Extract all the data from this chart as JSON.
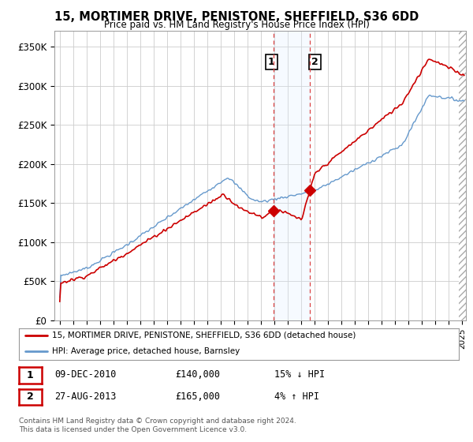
{
  "title": "15, MORTIMER DRIVE, PENISTONE, SHEFFIELD, S36 6DD",
  "subtitle": "Price paid vs. HM Land Registry's House Price Index (HPI)",
  "ylabel_ticks": [
    "£0",
    "£50K",
    "£100K",
    "£150K",
    "£200K",
    "£250K",
    "£300K",
    "£350K"
  ],
  "ytick_values": [
    0,
    50000,
    100000,
    150000,
    200000,
    250000,
    300000,
    350000
  ],
  "ylim": [
    0,
    370000
  ],
  "xlim_start": 1994.6,
  "xlim_end": 2025.3,
  "red_line_color": "#cc0000",
  "blue_line_color": "#6699cc",
  "sale1_date": 2010.94,
  "sale1_price": 140000,
  "sale2_date": 2013.65,
  "sale2_price": 165000,
  "vline_color": "#dd4444",
  "shade_color": "#ddeeff",
  "legend_line1": "15, MORTIMER DRIVE, PENISTONE, SHEFFIELD, S36 6DD (detached house)",
  "legend_line2": "HPI: Average price, detached house, Barnsley",
  "table_row1": [
    "1",
    "09-DEC-2010",
    "£140,000",
    "15% ↓ HPI"
  ],
  "table_row2": [
    "2",
    "27-AUG-2013",
    "£165,000",
    "4% ↑ HPI"
  ],
  "footnote": "Contains HM Land Registry data © Crown copyright and database right 2024.\nThis data is licensed under the Open Government Licence v3.0.",
  "background_color": "#ffffff",
  "grid_color": "#cccccc"
}
